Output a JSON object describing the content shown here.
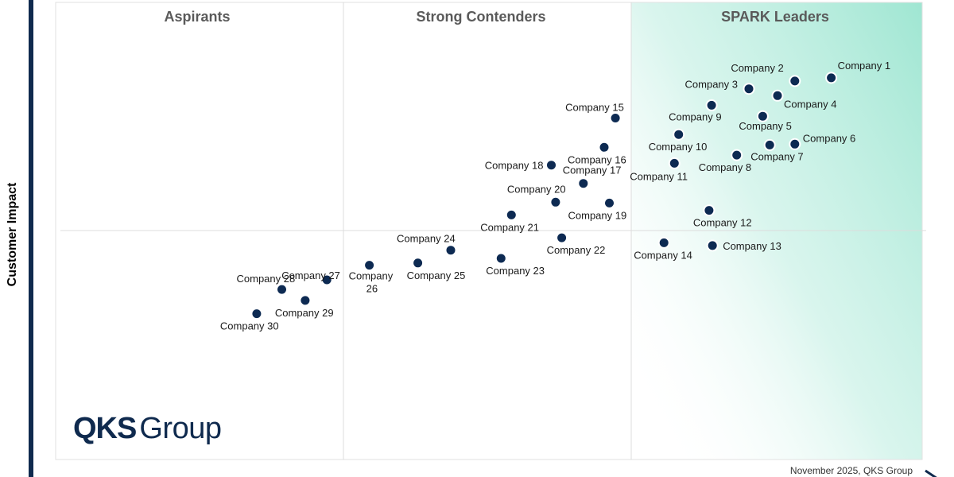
{
  "chart_data": {
    "type": "scatter",
    "ylabel": "Customer Impact",
    "xlabel": "",
    "xlim": [
      0,
      100
    ],
    "ylim": [
      0,
      100
    ],
    "grid": false,
    "quadrants": [
      "Aspirants",
      "Strong Contenders",
      "SPARK Leaders"
    ],
    "points": [
      {
        "label": "Company 1",
        "x": 89.5,
        "y": 83.5
      },
      {
        "label": "Company 2",
        "x": 85.3,
        "y": 82.8
      },
      {
        "label": "Company 3",
        "x": 80.0,
        "y": 81.1
      },
      {
        "label": "Company 4",
        "x": 83.3,
        "y": 79.6
      },
      {
        "label": "Company 5",
        "x": 81.6,
        "y": 75.1
      },
      {
        "label": "Company 6",
        "x": 85.3,
        "y": 69.0
      },
      {
        "label": "Company 7",
        "x": 82.4,
        "y": 68.8
      },
      {
        "label": "Company 8",
        "x": 78.6,
        "y": 66.6
      },
      {
        "label": "Company 9",
        "x": 75.7,
        "y": 77.5
      },
      {
        "label": "Company 10",
        "x": 71.9,
        "y": 71.1
      },
      {
        "label": "Company 11",
        "x": 71.4,
        "y": 64.8
      },
      {
        "label": "Company 12",
        "x": 75.4,
        "y": 54.5
      },
      {
        "label": "Company 13",
        "x": 75.8,
        "y": 46.8
      },
      {
        "label": "Company 14",
        "x": 70.2,
        "y": 47.4
      },
      {
        "label": "Company 15",
        "x": 64.6,
        "y": 74.7
      },
      {
        "label": "Company 16",
        "x": 63.3,
        "y": 68.3
      },
      {
        "label": "Company 17",
        "x": 60.9,
        "y": 60.4
      },
      {
        "label": "Company 18",
        "x": 57.2,
        "y": 64.4
      },
      {
        "label": "Company 19",
        "x": 63.9,
        "y": 56.1
      },
      {
        "label": "Company 20",
        "x": 57.7,
        "y": 56.3
      },
      {
        "label": "Company 21",
        "x": 52.6,
        "y": 53.5
      },
      {
        "label": "Company 22",
        "x": 58.4,
        "y": 48.5
      },
      {
        "label": "Company 23",
        "x": 51.4,
        "y": 44.0
      },
      {
        "label": "Company 24",
        "x": 45.6,
        "y": 45.8
      },
      {
        "label": "Company 25",
        "x": 41.8,
        "y": 43.0
      },
      {
        "label": "Company 26",
        "x": 36.2,
        "y": 42.5
      },
      {
        "label": "Company 27",
        "x": 31.3,
        "y": 39.3
      },
      {
        "label": "Company 28",
        "x": 26.1,
        "y": 37.2
      },
      {
        "label": "Company 29",
        "x": 28.8,
        "y": 34.8
      },
      {
        "label": "Company 30",
        "x": 23.2,
        "y": 31.9
      }
    ]
  },
  "logo": {
    "bold": "QKS",
    "light": "Group"
  },
  "footer": "November 2025, QKS Group",
  "colors": {
    "point": "#0d2a52",
    "point_ring": "#ffffff",
    "leader_gradient": "#9fe6d2",
    "divider": "#dcdcdc",
    "axis_bar": "#0f2a4e"
  }
}
